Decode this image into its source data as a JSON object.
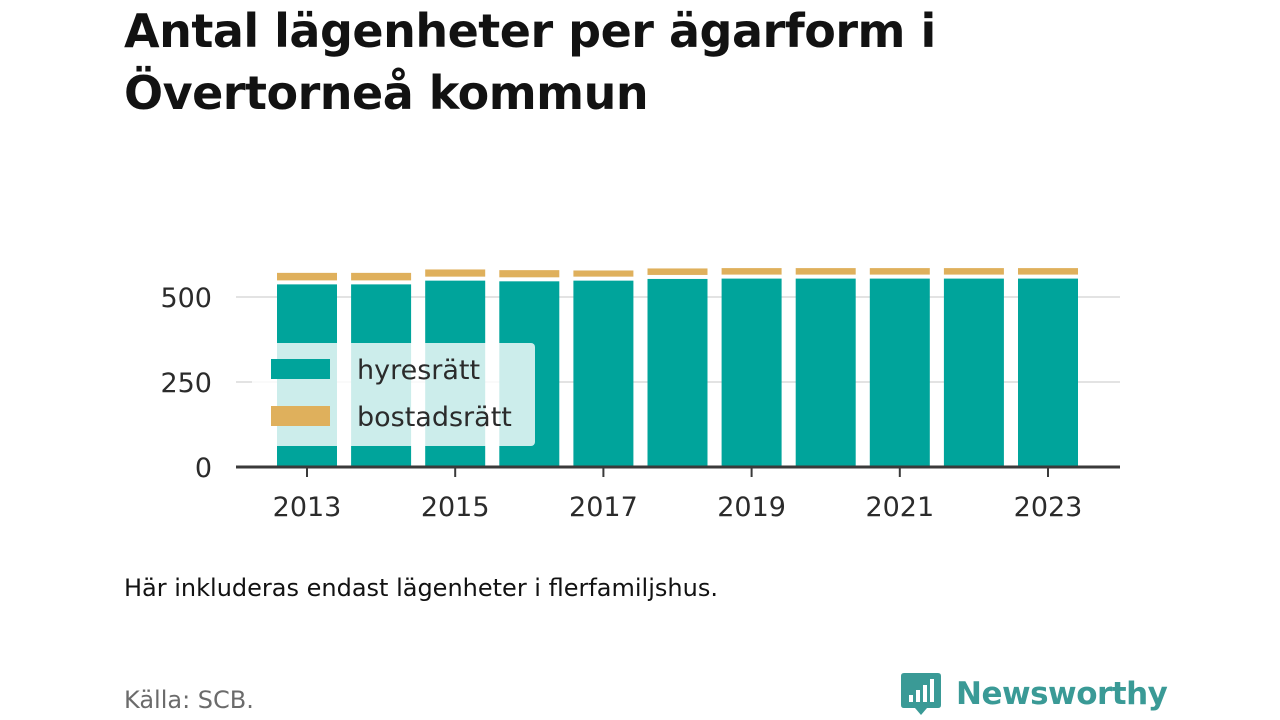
{
  "title": "Antal lägenheter per ägarform i Övertorneå kommun",
  "note": "Här inkluderas endast lägenheter i flerfamiljshus.",
  "source": "Källa: SCB.",
  "brand": {
    "name": "Newsworthy",
    "icon": "newsworthy-logo-icon",
    "color": "#3a9a96"
  },
  "chart_data": {
    "type": "bar",
    "stacked": true,
    "categories": [
      2013,
      2014,
      2015,
      2016,
      2017,
      2018,
      2019,
      2020,
      2021,
      2022,
      2023
    ],
    "x_tick_labels": [
      "2013",
      "2015",
      "2017",
      "2019",
      "2021",
      "2023"
    ],
    "x_tick_values": [
      2013,
      2015,
      2017,
      2019,
      2021,
      2023
    ],
    "y_ticks": [
      0,
      250,
      500
    ],
    "y_tick_labels": [
      "0",
      "250",
      "500"
    ],
    "ylim": [
      0,
      600
    ],
    "grid": true,
    "legend_placement": "inside-left",
    "series": [
      {
        "name": "hyresrätt",
        "color": "#00a49b",
        "values": [
          543,
          543,
          554,
          552,
          554,
          559,
          560,
          560,
          560,
          560,
          560
        ]
      },
      {
        "name": "bostadsrätt",
        "color": "#dfb05c",
        "values": [
          28,
          28,
          27,
          27,
          24,
          25,
          25,
          25,
          25,
          25,
          25
        ]
      }
    ]
  }
}
